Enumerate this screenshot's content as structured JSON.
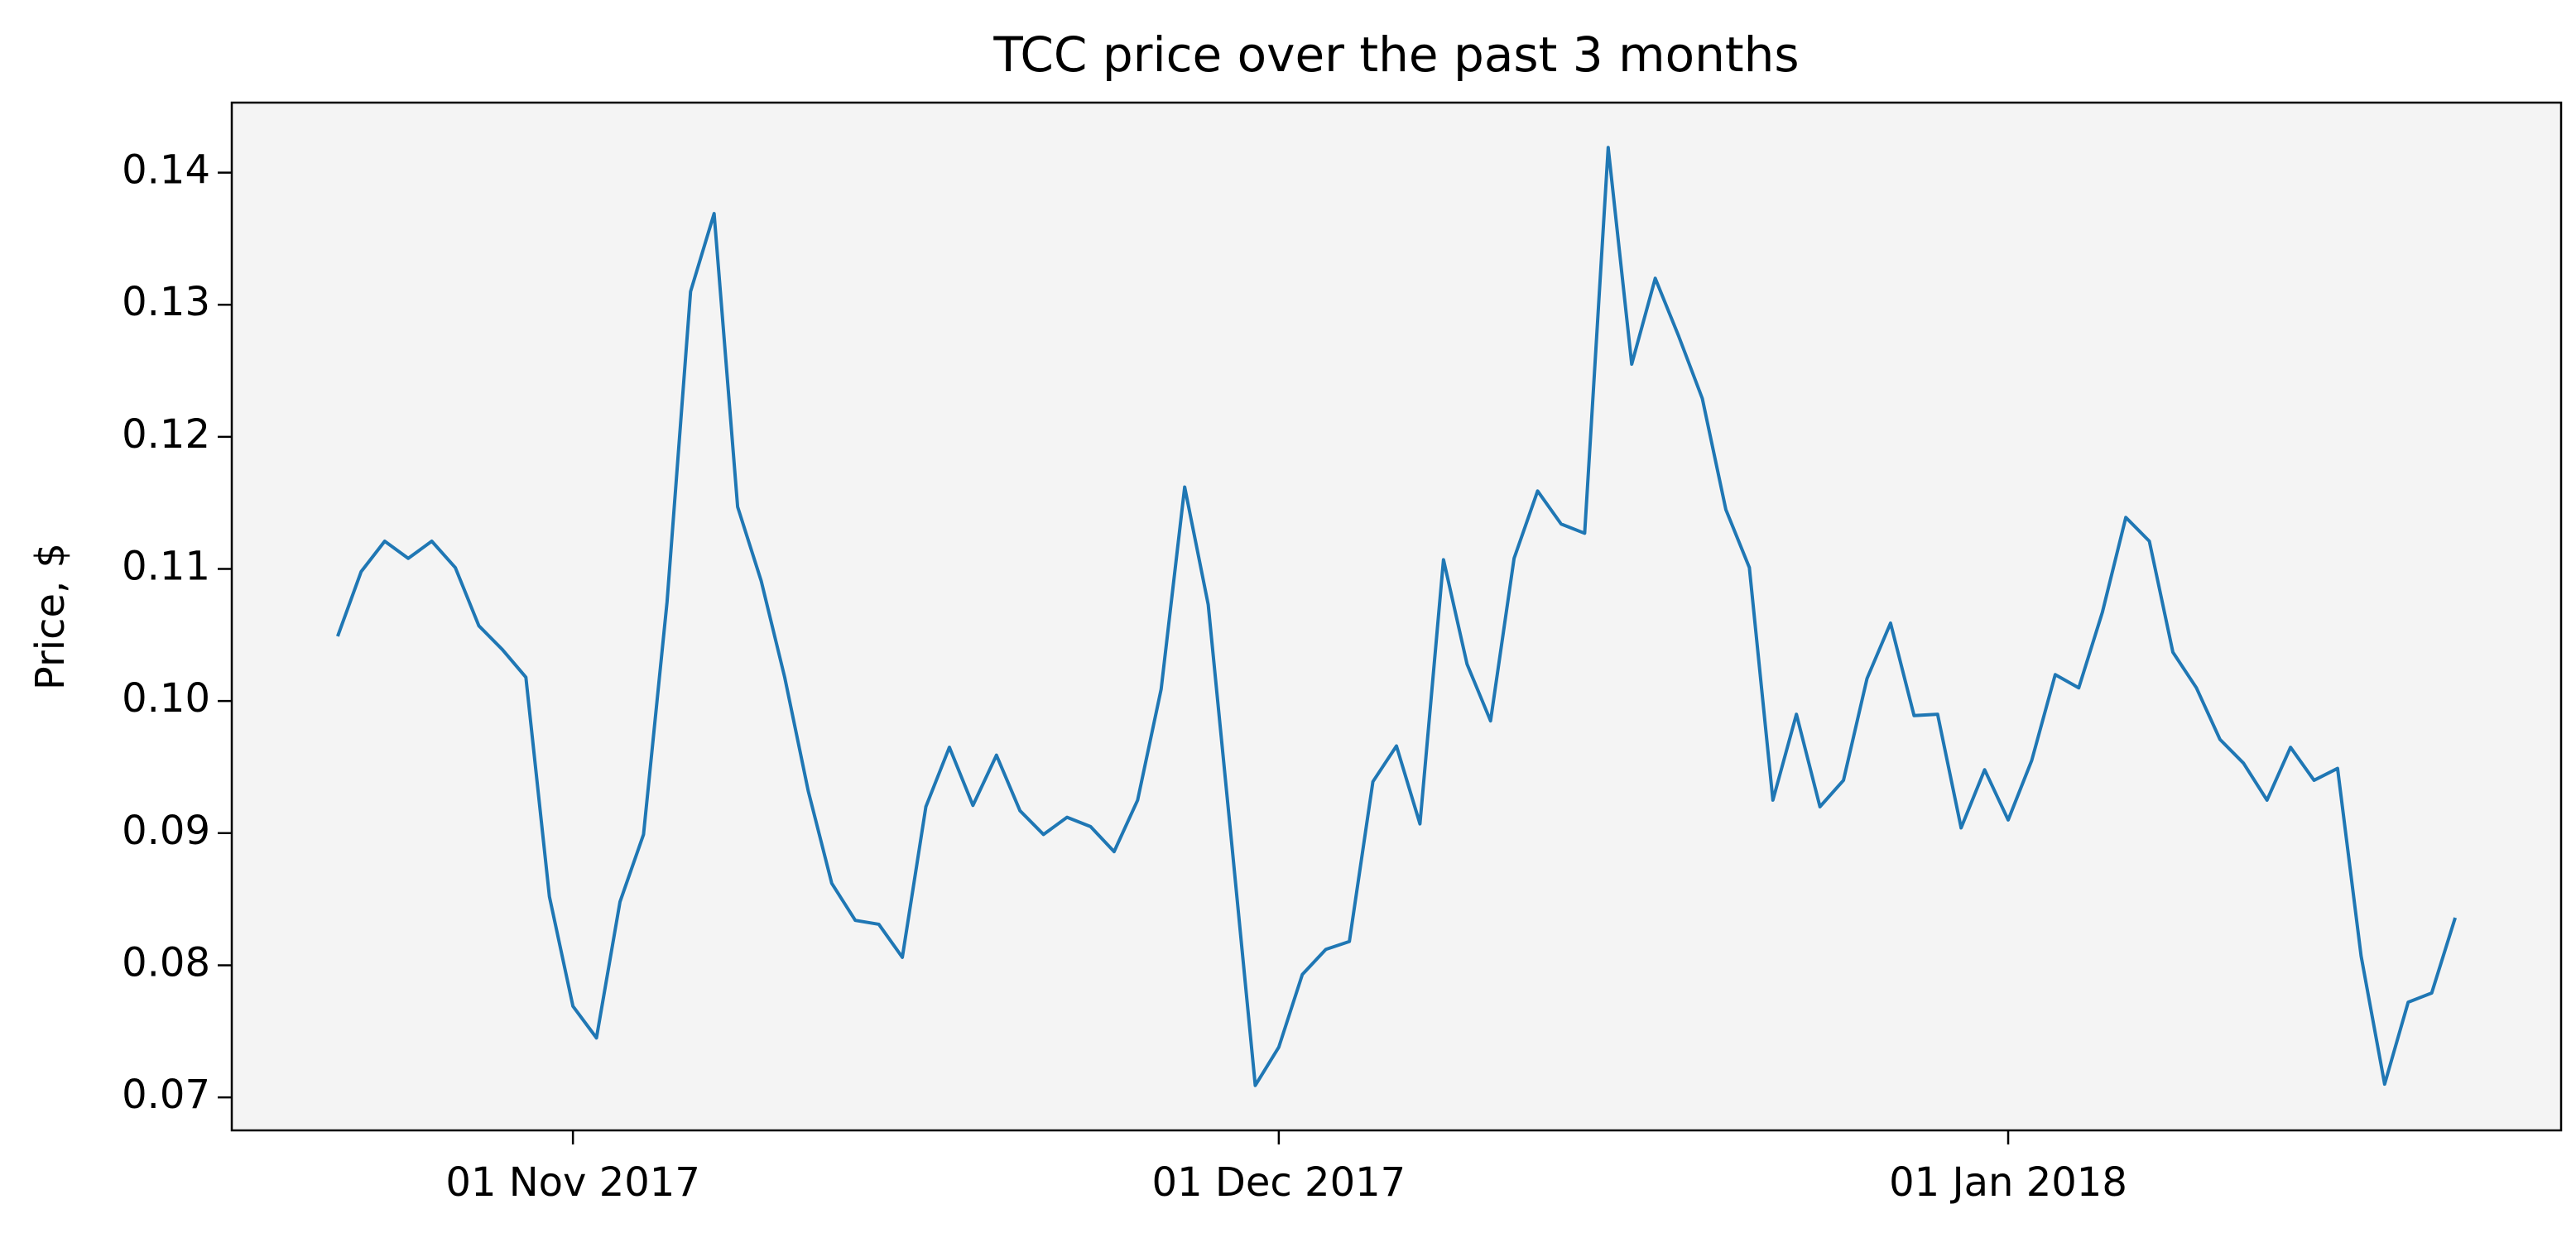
{
  "chart_data": {
    "type": "line",
    "title": "TCC price over the past 3 months",
    "y_label": "Price, $",
    "color": "#1f77b4",
    "background": "#f4f4f4",
    "grid": false,
    "x": [
      "2017-10-22",
      "2017-10-23",
      "2017-10-24",
      "2017-10-25",
      "2017-10-26",
      "2017-10-27",
      "2017-10-28",
      "2017-10-29",
      "2017-10-30",
      "2017-10-31",
      "2017-11-01",
      "2017-11-02",
      "2017-11-03",
      "2017-11-04",
      "2017-11-05",
      "2017-11-06",
      "2017-11-07",
      "2017-11-08",
      "2017-11-09",
      "2017-11-10",
      "2017-11-11",
      "2017-11-12",
      "2017-11-13",
      "2017-11-14",
      "2017-11-15",
      "2017-11-16",
      "2017-11-17",
      "2017-11-18",
      "2017-11-19",
      "2017-11-20",
      "2017-11-21",
      "2017-11-22",
      "2017-11-23",
      "2017-11-24",
      "2017-11-25",
      "2017-11-26",
      "2017-11-27",
      "2017-11-28",
      "2017-11-29",
      "2017-11-30",
      "2017-12-01",
      "2017-12-02",
      "2017-12-03",
      "2017-12-04",
      "2017-12-05",
      "2017-12-06",
      "2017-12-07",
      "2017-12-08",
      "2017-12-09",
      "2017-12-10",
      "2017-12-11",
      "2017-12-12",
      "2017-12-13",
      "2017-12-14",
      "2017-12-15",
      "2017-12-16",
      "2017-12-17",
      "2017-12-18",
      "2017-12-19",
      "2017-12-20",
      "2017-12-21",
      "2017-12-22",
      "2017-12-23",
      "2017-12-24",
      "2017-12-25",
      "2017-12-26",
      "2017-12-27",
      "2017-12-28",
      "2017-12-29",
      "2017-12-30",
      "2017-12-31",
      "2018-01-01",
      "2018-01-02",
      "2018-01-03",
      "2018-01-04",
      "2018-01-05",
      "2018-01-06",
      "2018-01-07",
      "2018-01-08",
      "2018-01-09",
      "2018-01-10",
      "2018-01-11",
      "2018-01-12",
      "2018-01-13",
      "2018-01-14",
      "2018-01-15",
      "2018-01-16",
      "2018-01-17",
      "2018-01-18",
      "2018-01-19",
      "2018-01-20"
    ],
    "values": [
      0.1049,
      0.1098,
      0.1121,
      0.1108,
      0.1121,
      0.1101,
      0.1057,
      0.1039,
      0.1018,
      0.0852,
      0.0769,
      0.0745,
      0.0848,
      0.0899,
      0.1075,
      0.131,
      0.1369,
      0.1147,
      0.1091,
      0.1018,
      0.0932,
      0.0862,
      0.0834,
      0.0831,
      0.0806,
      0.092,
      0.0965,
      0.0921,
      0.0959,
      0.0917,
      0.0899,
      0.0912,
      0.0905,
      0.0886,
      0.0925,
      0.1009,
      0.1162,
      0.1073,
      0.0892,
      0.0709,
      0.0738,
      0.0793,
      0.0812,
      0.0818,
      0.0939,
      0.0966,
      0.0907,
      0.1107,
      0.1028,
      0.0985,
      0.1108,
      0.1159,
      0.1134,
      0.1127,
      0.1419,
      0.1255,
      0.132,
      0.1276,
      0.1229,
      0.1145,
      0.1101,
      0.0925,
      0.099,
      0.092,
      0.094,
      0.1017,
      0.1059,
      0.0989,
      0.099,
      0.0904,
      0.0948,
      0.091,
      0.0955,
      0.102,
      0.101,
      0.1067,
      0.1139,
      0.1121,
      0.1037,
      0.101,
      0.0971,
      0.0953,
      0.0925,
      0.0965,
      0.094,
      0.0949,
      0.0807,
      0.071,
      0.0772,
      0.0779,
      0.0836
    ],
    "xlim": [
      "2017-10-17T12:00",
      "2018-01-24T12:00"
    ],
    "xticks": [
      {
        "value": "2017-11-01",
        "label": "01 Nov 2017"
      },
      {
        "value": "2017-12-01",
        "label": "01 Dec 2017"
      },
      {
        "value": "2018-01-01",
        "label": "01 Jan 2018"
      }
    ],
    "ylim": [
      0.0675,
      0.1453
    ],
    "yticks": [
      0.07,
      0.08,
      0.09,
      {
        "value": 0.1,
        "label": "0.10"
      },
      0.11,
      0.12,
      0.13,
      0.14
    ]
  }
}
